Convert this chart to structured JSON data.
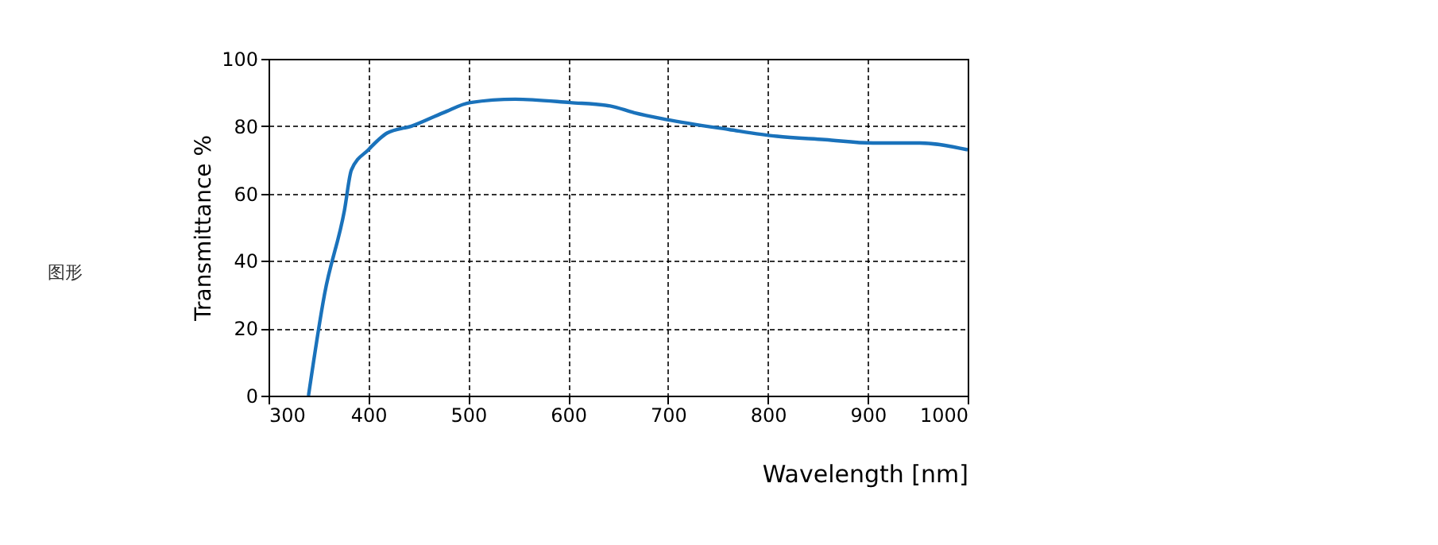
{
  "chart_data": {
    "type": "line",
    "xlabel": "Wavelength [nm]",
    "ylabel": "Transmittance %",
    "annotations": [
      "图形"
    ],
    "x": [
      340,
      356,
      376,
      383,
      400,
      419,
      443,
      475,
      502,
      547,
      602,
      642,
      666,
      698,
      761,
      809,
      857,
      905,
      952,
      1000
    ],
    "series": [
      {
        "color": "#1a72bb",
        "values": [
          0,
          30,
          55,
          67,
          73,
          78,
          80,
          84,
          87,
          88,
          87,
          86,
          84,
          82,
          79,
          77,
          76,
          75,
          75,
          73
        ]
      }
    ],
    "xlim": [
      300,
      1000
    ],
    "xticks": [
      300,
      400,
      500,
      600,
      700,
      800,
      900,
      1000
    ],
    "ylim": [
      0,
      100
    ],
    "yticks": [
      0,
      20,
      40,
      60,
      80,
      100
    ],
    "grid": true,
    "line_style": "solid"
  }
}
